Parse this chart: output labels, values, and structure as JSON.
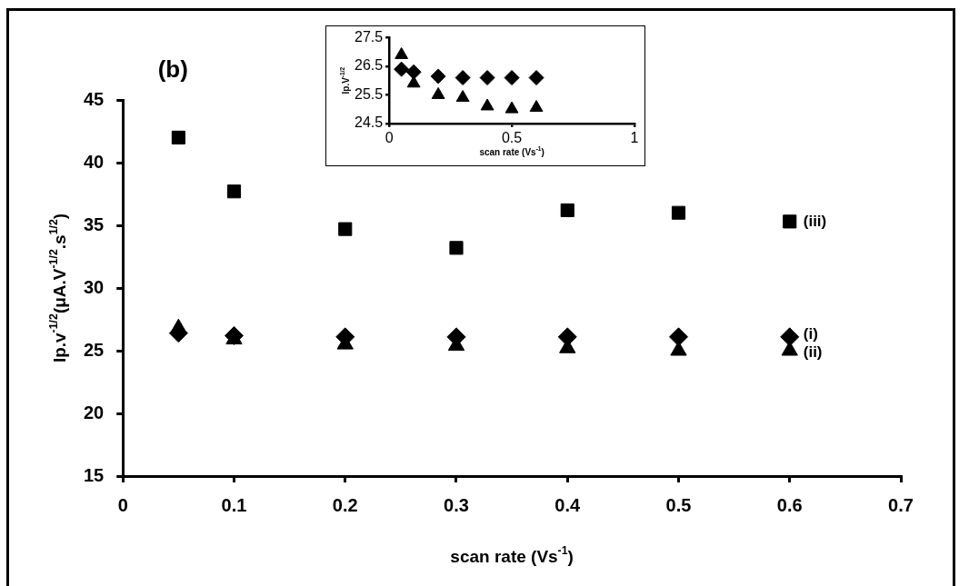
{
  "chart_data": [
    {
      "type": "scatter",
      "title": "(b)",
      "xlabel": "scan rate (Vs$^{-1}$)",
      "ylabel": "Ip.v$^{-1/2}$(μA.V$^{-1/2}$.s$^{1/2}$)",
      "xlim": [
        0,
        0.7
      ],
      "xticks": [
        0,
        0.1,
        0.2,
        0.3,
        0.4,
        0.5,
        0.6,
        0.7
      ],
      "ylim": [
        15,
        45
      ],
      "yticks": [
        15,
        20,
        25,
        30,
        35,
        40,
        45
      ],
      "grid": false,
      "legend": false,
      "x": [
        0.05,
        0.1,
        0.2,
        0.3,
        0.4,
        0.5,
        0.6
      ],
      "series": [
        {
          "name": "(i)",
          "color": "#000000",
          "marker": "diamond",
          "values": [
            26.4,
            26.2,
            26.1,
            26.1,
            26.1,
            26.1,
            26.1
          ]
        },
        {
          "name": "(ii)",
          "color": "#000000",
          "marker": "triangle",
          "values": [
            26.8,
            25.9,
            25.5,
            25.4,
            25.2,
            25.0,
            25.0
          ]
        },
        {
          "name": "(iii)",
          "color": "#000000",
          "marker": "square",
          "values": [
            42.0,
            37.7,
            34.7,
            33.2,
            36.2,
            36.0,
            35.3
          ]
        }
      ]
    },
    {
      "type": "scatter",
      "xlabel": "scan rate (Vs$^{-1}$)",
      "ylabel": "Ip.V$^{-1/2}$",
      "xlim": [
        0,
        1
      ],
      "xticks": [
        0,
        0.5,
        1
      ],
      "ylim": [
        24.5,
        27.5
      ],
      "yticks": [
        24.5,
        25.5,
        26.5,
        27.5
      ],
      "grid": false,
      "legend": false,
      "x": [
        0.05,
        0.1,
        0.2,
        0.3,
        0.4,
        0.5,
        0.6
      ],
      "series": [
        {
          "color": "#000000",
          "marker": "diamond",
          "values": [
            26.4,
            26.3,
            26.15,
            26.1,
            26.1,
            26.1,
            26.1
          ]
        },
        {
          "color": "#000000",
          "marker": "triangle",
          "values": [
            26.9,
            25.9,
            25.5,
            25.4,
            25.1,
            25.0,
            25.05
          ]
        }
      ]
    }
  ]
}
